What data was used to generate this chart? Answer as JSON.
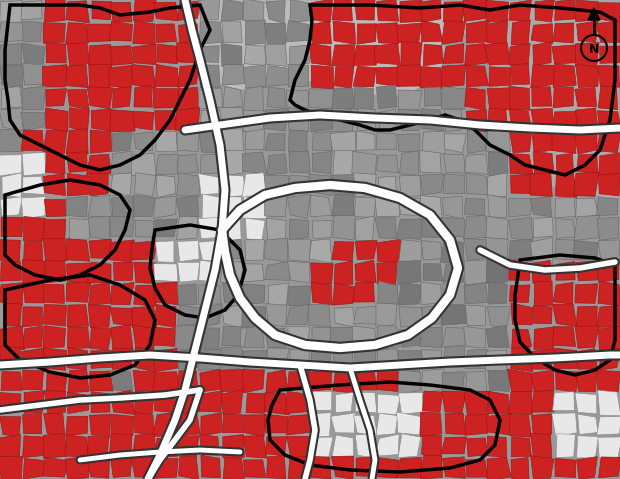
{
  "fig_width": 6.2,
  "fig_height": 4.79,
  "dpi": 100,
  "bg_color": "#ffffff",
  "gray_outer": "#aaaaaa",
  "gray_light": "#cccccc",
  "gray_dark": "#888888",
  "gray_med": "#999999",
  "red_color": "#cc2222",
  "white_color": "#ffffff",
  "black_color": "#000000",
  "road_color": "#ffffff",
  "road_outline": "#444444"
}
